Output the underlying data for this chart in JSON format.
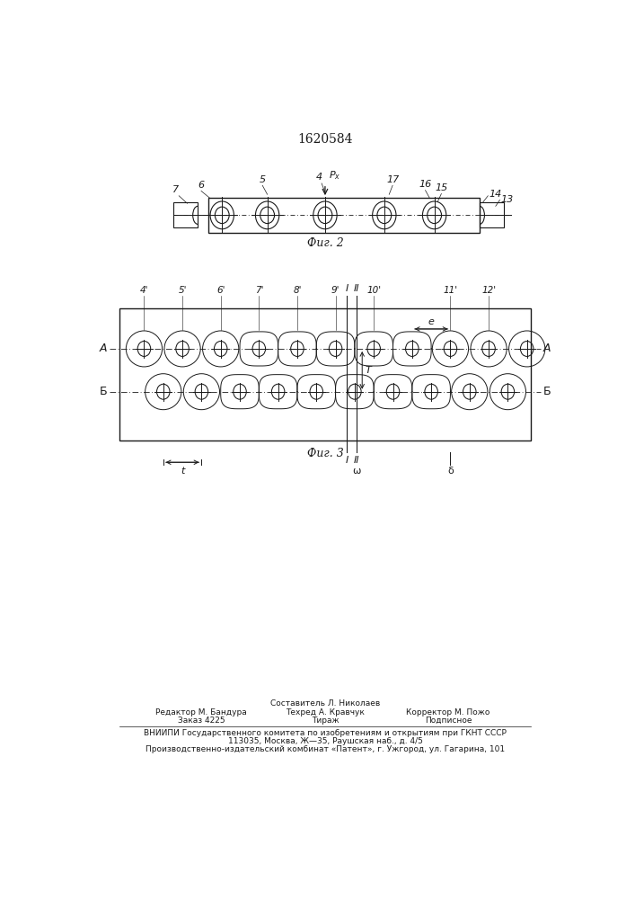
{
  "title": "1620584",
  "fig2_caption": "Фиг. 2",
  "fig3_caption": "Фиг. 3",
  "bg_color": "#ffffff",
  "line_color": "#1a1a1a",
  "footer_line0": "Составитель Л. Николаев",
  "footer_line1a": "Редактор М. Бандура",
  "footer_line1b": "Техред А. Кравчук",
  "footer_line1c": "Корректор М. Пожо",
  "footer_line2a": "Заказ 4225",
  "footer_line2b": "Тираж",
  "footer_line2c": "Подписное",
  "footer_line3": "ВНИИПИ Государственного комитета по изобретениям и открытиям при ГКНТ СССР",
  "footer_line4": "113035, Москва, Ж—35, Раушская наб., д. 4/5",
  "footer_line5": "Производственно-издательский комбинат «Патент», г. Ужгород, ул. Гагарина, 101"
}
